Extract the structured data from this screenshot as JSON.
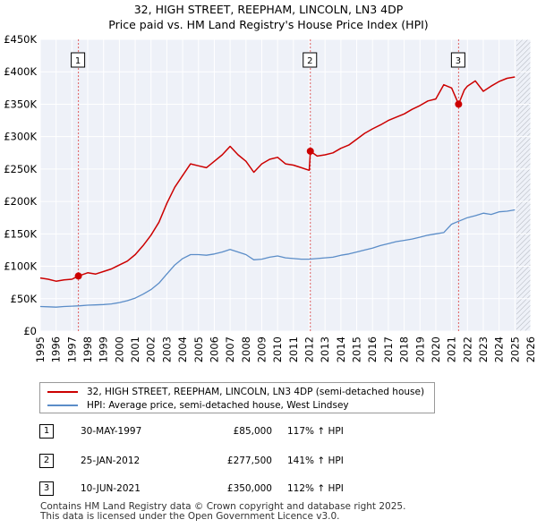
{
  "chart_data": {
    "type": "line",
    "title": "32, HIGH STREET, REEPHAM, LINCOLN, LN3 4DP",
    "subtitle": "Price paid vs. HM Land Registry's House Price Index (HPI)",
    "xlabel": "",
    "ylabel": "",
    "xlim": [
      1995,
      2026
    ],
    "ylim": [
      0,
      450000
    ],
    "y_ticks": [
      {
        "value": 0,
        "label": "£0"
      },
      {
        "value": 50000,
        "label": "£50K"
      },
      {
        "value": 100000,
        "label": "£100K"
      },
      {
        "value": 150000,
        "label": "£150K"
      },
      {
        "value": 200000,
        "label": "£200K"
      },
      {
        "value": 250000,
        "label": "£250K"
      },
      {
        "value": 300000,
        "label": "£300K"
      },
      {
        "value": 350000,
        "label": "£350K"
      },
      {
        "value": 400000,
        "label": "£400K"
      },
      {
        "value": 450000,
        "label": "£450K"
      }
    ],
    "x_ticks": [
      "1995",
      "1996",
      "1997",
      "1998",
      "1999",
      "2000",
      "2001",
      "2002",
      "2003",
      "2004",
      "2005",
      "2006",
      "2007",
      "2008",
      "2009",
      "2010",
      "2011",
      "2012",
      "2013",
      "2014",
      "2015",
      "2016",
      "2017",
      "2018",
      "2019",
      "2020",
      "2021",
      "2022",
      "2023",
      "2024",
      "2025",
      "2026"
    ],
    "grid": true,
    "series": [
      {
        "name": "32, HIGH STREET, REEPHAM, LINCOLN, LN3 4DP (semi-detached house)",
        "color": "#cc0000",
        "x": [
          1995.0,
          1995.5,
          1996.0,
          1996.5,
          1997.0,
          1997.41,
          1998.0,
          1998.5,
          1999.0,
          1999.5,
          2000.0,
          2000.5,
          2001.0,
          2001.5,
          2002.0,
          2002.5,
          2003.0,
          2003.5,
          2004.0,
          2004.5,
          2005.0,
          2005.5,
          2006.0,
          2006.5,
          2007.0,
          2007.5,
          2008.0,
          2008.5,
          2009.0,
          2009.5,
          2010.0,
          2010.5,
          2011.0,
          2011.5,
          2012.0,
          2012.07,
          2012.5,
          2013.0,
          2013.5,
          2014.0,
          2014.5,
          2015.0,
          2015.5,
          2016.0,
          2016.5,
          2017.0,
          2017.5,
          2018.0,
          2018.5,
          2019.0,
          2019.5,
          2020.0,
          2020.5,
          2021.0,
          2021.44,
          2021.8,
          2022.0,
          2022.5,
          2023.0,
          2023.5,
          2024.0,
          2024.5,
          2025.0
        ],
        "values": [
          82000,
          80000,
          77000,
          79000,
          80000,
          85000,
          90000,
          88000,
          92000,
          96000,
          102000,
          108000,
          118000,
          132000,
          148000,
          168000,
          197000,
          222000,
          240000,
          258000,
          255000,
          252000,
          262000,
          272000,
          285000,
          272000,
          262000,
          245000,
          258000,
          265000,
          268000,
          258000,
          256000,
          252000,
          248000,
          277500,
          270000,
          272000,
          275000,
          282000,
          287000,
          296000,
          305000,
          312000,
          318000,
          325000,
          330000,
          335000,
          342000,
          348000,
          355000,
          358000,
          380000,
          375000,
          350000,
          372000,
          378000,
          386000,
          370000,
          378000,
          385000,
          390000,
          392000
        ]
      },
      {
        "name": "HPI: Average price, semi-detached house, West Lindsey",
        "color": "#5b8dc8",
        "x": [
          1995.0,
          1995.5,
          1996.0,
          1996.5,
          1997.0,
          1997.5,
          1998.0,
          1998.5,
          1999.0,
          1999.5,
          2000.0,
          2000.5,
          2001.0,
          2001.5,
          2002.0,
          2002.5,
          2003.0,
          2003.5,
          2004.0,
          2004.5,
          2005.0,
          2005.5,
          2006.0,
          2006.5,
          2007.0,
          2007.5,
          2008.0,
          2008.5,
          2009.0,
          2009.5,
          2010.0,
          2010.5,
          2011.0,
          2011.5,
          2012.0,
          2012.5,
          2013.0,
          2013.5,
          2014.0,
          2014.5,
          2015.0,
          2015.5,
          2016.0,
          2016.5,
          2017.0,
          2017.5,
          2018.0,
          2018.5,
          2019.0,
          2019.5,
          2020.0,
          2020.5,
          2021.0,
          2021.5,
          2022.0,
          2022.5,
          2023.0,
          2023.5,
          2024.0,
          2024.5,
          2025.0
        ],
        "values": [
          38000,
          37500,
          37000,
          38000,
          38500,
          39000,
          40000,
          40500,
          41000,
          42000,
          44000,
          47000,
          51000,
          57000,
          64000,
          74000,
          88000,
          102000,
          112000,
          118000,
          118000,
          117000,
          119000,
          122000,
          126000,
          122000,
          118000,
          110000,
          111000,
          114000,
          116000,
          113000,
          112000,
          111000,
          111000,
          112000,
          113000,
          114000,
          117000,
          119000,
          122000,
          125000,
          128000,
          132000,
          135000,
          138000,
          140000,
          142000,
          145000,
          148000,
          150000,
          152000,
          165000,
          170000,
          175000,
          178000,
          182000,
          180000,
          184000,
          185000,
          187000
        ]
      }
    ],
    "annotations": [
      {
        "label": "1",
        "x": 1997.41,
        "y": 85000
      },
      {
        "label": "2",
        "x": 2012.07,
        "y": 277500
      },
      {
        "label": "3",
        "x": 2021.44,
        "y": 350000
      }
    ],
    "hatched_after": 2025.1
  },
  "legend": {
    "property_label": "32, HIGH STREET, REEPHAM, LINCOLN, LN3 4DP (semi-detached house)",
    "hpi_label": "HPI: Average price, semi-detached house, West Lindsey"
  },
  "sales": [
    {
      "num": "1",
      "date": "30-MAY-1997",
      "price": "£85,000",
      "hpi": "117% ↑ HPI"
    },
    {
      "num": "2",
      "date": "25-JAN-2012",
      "price": "£277,500",
      "hpi": "141% ↑ HPI"
    },
    {
      "num": "3",
      "date": "10-JUN-2021",
      "price": "£350,000",
      "hpi": "112% ↑ HPI"
    }
  ],
  "footer": {
    "line1": "Contains HM Land Registry data © Crown copyright and database right 2025.",
    "line2": "This data is licensed under the Open Government Licence v3.0."
  },
  "colors": {
    "property": "#cc0000",
    "hpi": "#5b8dc8",
    "plot_bg": "#eef1f8",
    "grid": "#ffffff"
  }
}
